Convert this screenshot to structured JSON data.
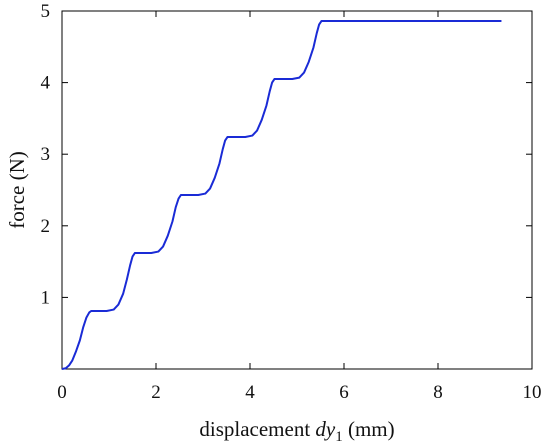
{
  "chart_data": {
    "type": "line",
    "title": "",
    "xlabel": {
      "prefix": "displacement ",
      "var": "dy",
      "sub": "1",
      "suffix": " (mm)"
    },
    "ylabel": "force (N)",
    "xlim": [
      0,
      10
    ],
    "ylim": [
      0,
      5
    ],
    "xticks": [
      "0",
      "2",
      "4",
      "6",
      "8",
      "10"
    ],
    "yticks": [
      "1",
      "2",
      "3",
      "4",
      "5"
    ],
    "grid": false,
    "legend": "none",
    "series": [
      {
        "color": "#1a2bd6",
        "x": [
          0,
          0.08,
          0.15,
          0.22,
          0.3,
          0.38,
          0.45,
          0.52,
          0.58,
          0.62,
          0.75,
          0.95,
          1.1,
          1.2,
          1.3,
          1.38,
          1.45,
          1.5,
          1.55,
          1.7,
          1.9,
          2.05,
          2.15,
          2.25,
          2.35,
          2.42,
          2.48,
          2.53,
          2.7,
          2.9,
          3.05,
          3.15,
          3.25,
          3.35,
          3.42,
          3.47,
          3.52,
          3.7,
          3.9,
          4.05,
          4.15,
          4.25,
          4.35,
          4.42,
          4.47,
          4.52,
          4.7,
          4.9,
          5.05,
          5.15,
          5.25,
          5.35,
          5.42,
          5.47,
          5.52,
          9.35
        ],
        "y": [
          0,
          0.01,
          0.05,
          0.12,
          0.25,
          0.4,
          0.58,
          0.72,
          0.79,
          0.81,
          0.81,
          0.81,
          0.83,
          0.9,
          1.05,
          1.25,
          1.45,
          1.57,
          1.62,
          1.62,
          1.62,
          1.64,
          1.71,
          1.86,
          2.06,
          2.26,
          2.38,
          2.43,
          2.43,
          2.43,
          2.45,
          2.52,
          2.67,
          2.87,
          3.07,
          3.19,
          3.24,
          3.24,
          3.24,
          3.26,
          3.33,
          3.48,
          3.68,
          3.88,
          4.0,
          4.05,
          4.05,
          4.05,
          4.07,
          4.14,
          4.29,
          4.49,
          4.69,
          4.81,
          4.86,
          4.86
        ]
      }
    ]
  }
}
